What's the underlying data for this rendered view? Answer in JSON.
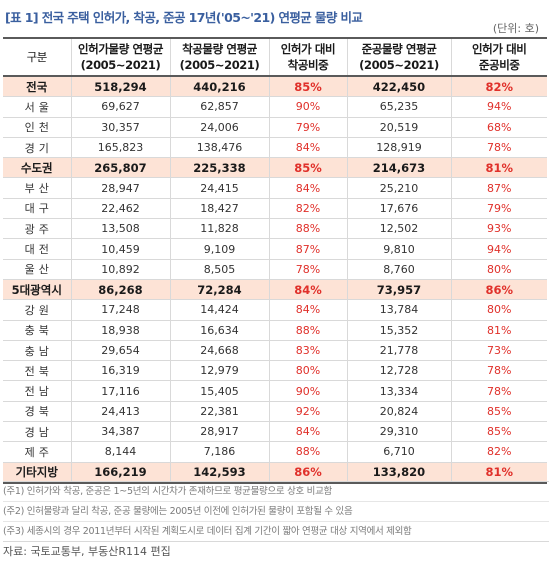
{
  "title": "[표 1] 전국 주택 인허가, 착공, 준공 17년('05~'21) 연평균 물량 비교",
  "unit": "(단위: 호)",
  "header": {
    "col1": "구분",
    "col2_line1": "인허가물량 연평균",
    "col2_line2": "(2005~2021)",
    "col3_line1": "착공물량 연평균",
    "col3_line2": "(2005~2021)",
    "col4_line1": "인허가 대비",
    "col4_line2": "착공비중",
    "col5_line1": "준공물량 연평균",
    "col5_line2": "(2005~2021)",
    "col6_line1": "인허가 대비",
    "col6_line2": "준공비중"
  },
  "rows": [
    {
      "region": "전국",
      "permit": "518,294",
      "start": "440,216",
      "start_ratio": "85%",
      "complete": "422,450",
      "complete_ratio": "82%",
      "total": true
    },
    {
      "region": "서울",
      "permit": "69,627",
      "start": "62,857",
      "start_ratio": "90%",
      "complete": "65,235",
      "complete_ratio": "94%",
      "total": false
    },
    {
      "region": "인천",
      "permit": "30,357",
      "start": "24,006",
      "start_ratio": "79%",
      "complete": "20,519",
      "complete_ratio": "68%",
      "total": false
    },
    {
      "region": "경기",
      "permit": "165,823",
      "start": "138,476",
      "start_ratio": "84%",
      "complete": "128,919",
      "complete_ratio": "78%",
      "total": false
    },
    {
      "region": "수도권",
      "permit": "265,807",
      "start": "225,338",
      "start_ratio": "85%",
      "complete": "214,673",
      "complete_ratio": "81%",
      "total": true
    },
    {
      "region": "부산",
      "permit": "28,947",
      "start": "24,415",
      "start_ratio": "84%",
      "complete": "25,210",
      "complete_ratio": "87%",
      "total": false
    },
    {
      "region": "대구",
      "permit": "22,462",
      "start": "18,427",
      "start_ratio": "82%",
      "complete": "17,676",
      "complete_ratio": "79%",
      "total": false
    },
    {
      "region": "광주",
      "permit": "13,508",
      "start": "11,828",
      "start_ratio": "88%",
      "complete": "12,502",
      "complete_ratio": "93%",
      "total": false
    },
    {
      "region": "대전",
      "permit": "10,459",
      "start": "9,109",
      "start_ratio": "87%",
      "complete": "9,810",
      "complete_ratio": "94%",
      "total": false
    },
    {
      "region": "울산",
      "permit": "10,892",
      "start": "8,505",
      "start_ratio": "78%",
      "complete": "8,760",
      "complete_ratio": "80%",
      "total": false
    },
    {
      "region": "5대광역시",
      "permit": "86,268",
      "start": "72,284",
      "start_ratio": "84%",
      "complete": "73,957",
      "complete_ratio": "86%",
      "total": true
    },
    {
      "region": "강원",
      "permit": "17,248",
      "start": "14,424",
      "start_ratio": "84%",
      "complete": "13,784",
      "complete_ratio": "80%",
      "total": false
    },
    {
      "region": "충북",
      "permit": "18,938",
      "start": "16,634",
      "start_ratio": "88%",
      "complete": "15,352",
      "complete_ratio": "81%",
      "total": false
    },
    {
      "region": "충남",
      "permit": "29,654",
      "start": "24,668",
      "start_ratio": "83%",
      "complete": "21,778",
      "complete_ratio": "73%",
      "total": false
    },
    {
      "region": "전북",
      "permit": "16,319",
      "start": "12,979",
      "start_ratio": "80%",
      "complete": "12,728",
      "complete_ratio": "78%",
      "total": false
    },
    {
      "region": "전남",
      "permit": "17,116",
      "start": "15,405",
      "start_ratio": "90%",
      "complete": "13,334",
      "complete_ratio": "78%",
      "total": false
    },
    {
      "region": "경북",
      "permit": "24,413",
      "start": "22,381",
      "start_ratio": "92%",
      "complete": "20,824",
      "complete_ratio": "85%",
      "total": false
    },
    {
      "region": "경남",
      "permit": "34,387",
      "start": "28,917",
      "start_ratio": "84%",
      "complete": "29,310",
      "complete_ratio": "85%",
      "total": false
    },
    {
      "region": "제주",
      "permit": "8,144",
      "start": "7,186",
      "start_ratio": "88%",
      "complete": "6,710",
      "complete_ratio": "82%",
      "total": false
    },
    {
      "region": "기타지방",
      "permit": "166,219",
      "start": "142,593",
      "start_ratio": "86%",
      "complete": "133,820",
      "complete_ratio": "81%",
      "total": true
    }
  ],
  "notes": [
    "(주1) 인허가와 착공, 준공은 1~5년의 시간차가 존재하므로 평균물량으로 상호 비교함",
    "(주2) 인허물량과 달리 착공, 준공 물량에는 2005년 이전에 인허가된 물량이 포함될 수 있음",
    "(주3) 세종시의 경우 2011년부터 시작된 계획도시로 데이터 집계 기간이 짧아 연평균 대상 지역에서 제외함"
  ],
  "source": "자료: 국토교통부, 부동산R114 편집",
  "colors": {
    "title": "#3a5f9f",
    "total_row_bg": "#fde3d6",
    "ratio_text": "#e0302a"
  }
}
